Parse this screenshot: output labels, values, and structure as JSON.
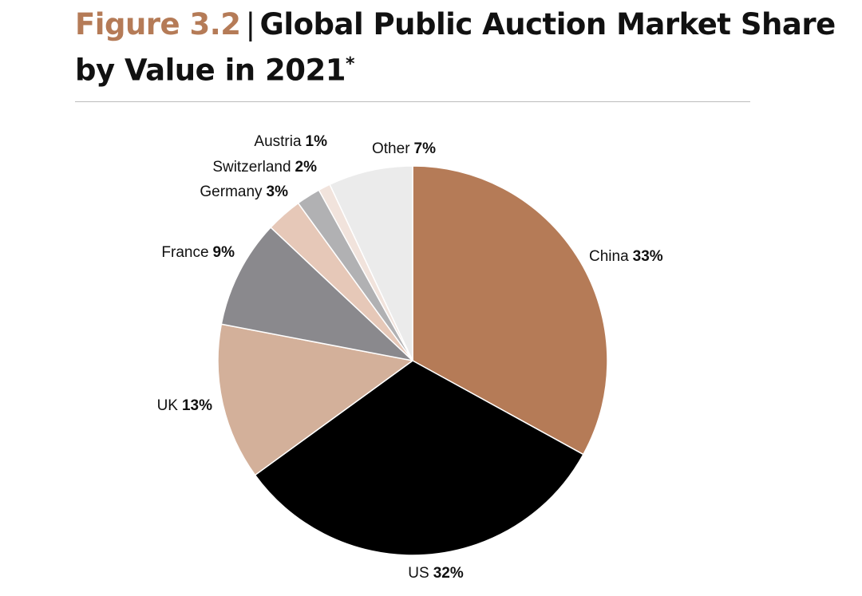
{
  "figure": {
    "label": "Figure 3.2",
    "separator": "|",
    "title_line1": "Global Public Auction Market Share",
    "title_line2": "by Value in 2021",
    "footnote_mark": "*"
  },
  "chart_data": {
    "type": "pie",
    "title": "Global Public Auction Market Share by Value in 2021*",
    "start": "12 o'clock, clockwise",
    "slices": [
      {
        "key": "china",
        "label": "China",
        "pct_label": "33%",
        "value": 33,
        "color": "#b57b57"
      },
      {
        "key": "us",
        "label": "US",
        "pct_label": "32%",
        "value": 32,
        "color": "#000000"
      },
      {
        "key": "uk",
        "label": "UK",
        "pct_label": "13%",
        "value": 13,
        "color": "#d3b09a"
      },
      {
        "key": "france",
        "label": "France",
        "pct_label": "9%",
        "value": 9,
        "color": "#8a898d"
      },
      {
        "key": "germany",
        "label": "Germany",
        "pct_label": "3%",
        "value": 3,
        "color": "#e6c8b8"
      },
      {
        "key": "switzerland",
        "label": "Switzerland",
        "pct_label": "2%",
        "value": 2,
        "color": "#b1b1b3"
      },
      {
        "key": "austria",
        "label": "Austria",
        "pct_label": "1%",
        "value": 1,
        "color": "#f1e3dc"
      },
      {
        "key": "other",
        "label": "Other",
        "pct_label": "7%",
        "value": 7,
        "color": "#ebebeb"
      }
    ]
  }
}
